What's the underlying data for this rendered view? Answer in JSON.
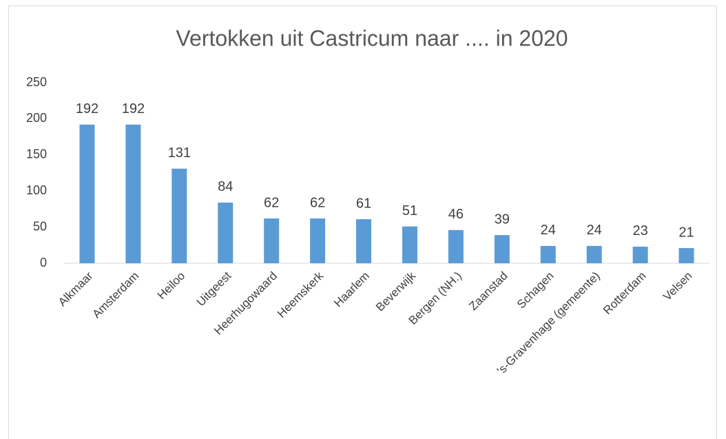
{
  "chart_data": {
    "type": "bar",
    "title": "Vertokken uit Castricum naar .... in 2020",
    "categories": [
      "Alkmaar",
      "Amsterdam",
      "Heiloo",
      "Uitgeest",
      "Heerhugowaard",
      "Heemskerk",
      "Haarlem",
      "Beverwijk",
      "Bergen (NH.)",
      "Zaanstad",
      "Schagen",
      "'s-Gravenhage (gemeente)",
      "Rotterdam",
      "Velsen"
    ],
    "values": [
      192,
      192,
      131,
      84,
      62,
      62,
      61,
      51,
      46,
      39,
      24,
      24,
      23,
      21
    ],
    "color": "#5b9bd5",
    "ylim": [
      0,
      250
    ],
    "yticks": [
      0,
      50,
      100,
      150,
      200,
      250
    ],
    "grid": false
  }
}
